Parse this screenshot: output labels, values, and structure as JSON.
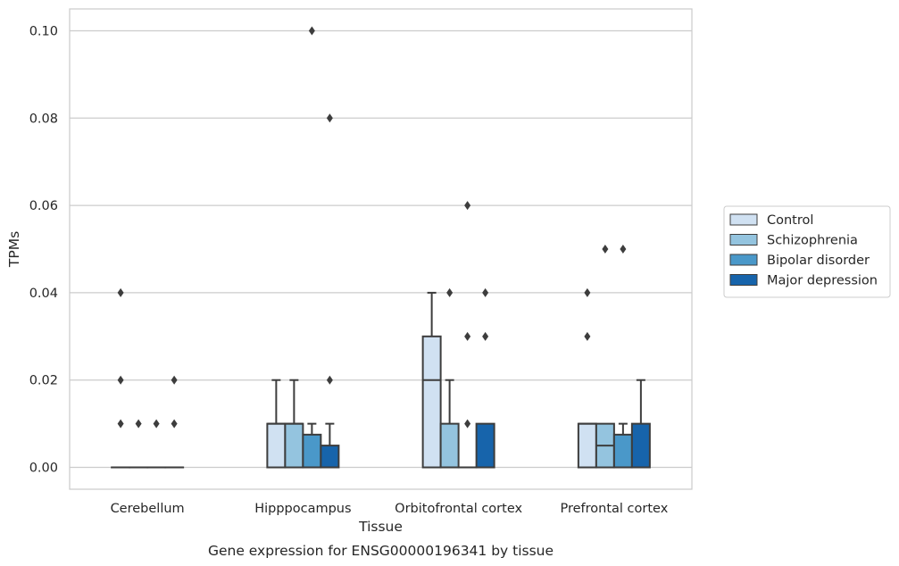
{
  "chart_data": {
    "type": "box",
    "xlabel": "Tissue",
    "ylabel": "TPMs",
    "caption": "Gene expression for ENSG00000196341 by tissue",
    "categories": [
      "Cerebellum",
      "Hipppocampus",
      "Orbitofrontal cortex",
      "Prefrontal cortex"
    ],
    "ylim": [
      -0.005,
      0.105
    ],
    "yticks": [
      0.0,
      0.02,
      0.04,
      0.06,
      0.08,
      0.1
    ],
    "ytick_labels": [
      "0.00",
      "0.02",
      "0.04",
      "0.06",
      "0.08",
      "0.10"
    ],
    "grid": "horizontal",
    "legend_position": "right",
    "series": [
      {
        "name": "Control",
        "color": "#d0e1f2",
        "boxes": [
          {
            "q1": 0,
            "median": 0,
            "q3": 0,
            "whislo": 0,
            "whishi": 0,
            "fliers": [
              0.01,
              0.02,
              0.04
            ]
          },
          {
            "q1": 0,
            "median": 0.01,
            "q3": 0.01,
            "whislo": 0,
            "whishi": 0.02,
            "fliers": []
          },
          {
            "q1": 0,
            "median": 0.02,
            "q3": 0.03,
            "whislo": 0,
            "whishi": 0.04,
            "fliers": []
          },
          {
            "q1": 0,
            "median": 0.01,
            "q3": 0.01,
            "whislo": 0,
            "whishi": 0.01,
            "fliers": [
              0.03,
              0.04
            ]
          }
        ]
      },
      {
        "name": "Schizophrenia",
        "color": "#94c4df",
        "boxes": [
          {
            "q1": 0,
            "median": 0,
            "q3": 0,
            "whislo": 0,
            "whishi": 0,
            "fliers": [
              0.01
            ]
          },
          {
            "q1": 0,
            "median": 0.01,
            "q3": 0.01,
            "whislo": 0,
            "whishi": 0.02,
            "fliers": []
          },
          {
            "q1": 0,
            "median": 0,
            "q3": 0.01,
            "whislo": 0,
            "whishi": 0.02,
            "fliers": [
              0.04
            ]
          },
          {
            "q1": 0,
            "median": 0.005,
            "q3": 0.01,
            "whislo": 0,
            "whishi": 0.01,
            "fliers": [
              0.05
            ]
          }
        ]
      },
      {
        "name": "Bipolar disorder",
        "color": "#4a98c9",
        "boxes": [
          {
            "q1": 0,
            "median": 0,
            "q3": 0,
            "whislo": 0,
            "whishi": 0,
            "fliers": [
              0.01
            ]
          },
          {
            "q1": 0,
            "median": 0,
            "q3": 0.0075,
            "whislo": 0,
            "whishi": 0.01,
            "fliers": [
              0.1
            ]
          },
          {
            "q1": 0,
            "median": 0,
            "q3": 0,
            "whislo": 0,
            "whishi": 0,
            "fliers": [
              0.01,
              0.03,
              0.06
            ]
          },
          {
            "q1": 0,
            "median": 0,
            "q3": 0.0075,
            "whislo": 0,
            "whishi": 0.01,
            "fliers": [
              0.05
            ]
          }
        ]
      },
      {
        "name": "Major depression",
        "color": "#1764ab",
        "boxes": [
          {
            "q1": 0,
            "median": 0,
            "q3": 0,
            "whislo": 0,
            "whishi": 0,
            "fliers": [
              0.01,
              0.02
            ]
          },
          {
            "q1": 0,
            "median": 0,
            "q3": 0.005,
            "whislo": 0,
            "whishi": 0.01,
            "fliers": [
              0.02,
              0.08
            ]
          },
          {
            "q1": 0,
            "median": 0,
            "q3": 0.01,
            "whislo": 0,
            "whishi": 0.01,
            "fliers": [
              0.03,
              0.04
            ]
          },
          {
            "q1": 0,
            "median": 0,
            "q3": 0.01,
            "whislo": 0,
            "whishi": 0.02,
            "fliers": []
          }
        ]
      }
    ]
  }
}
